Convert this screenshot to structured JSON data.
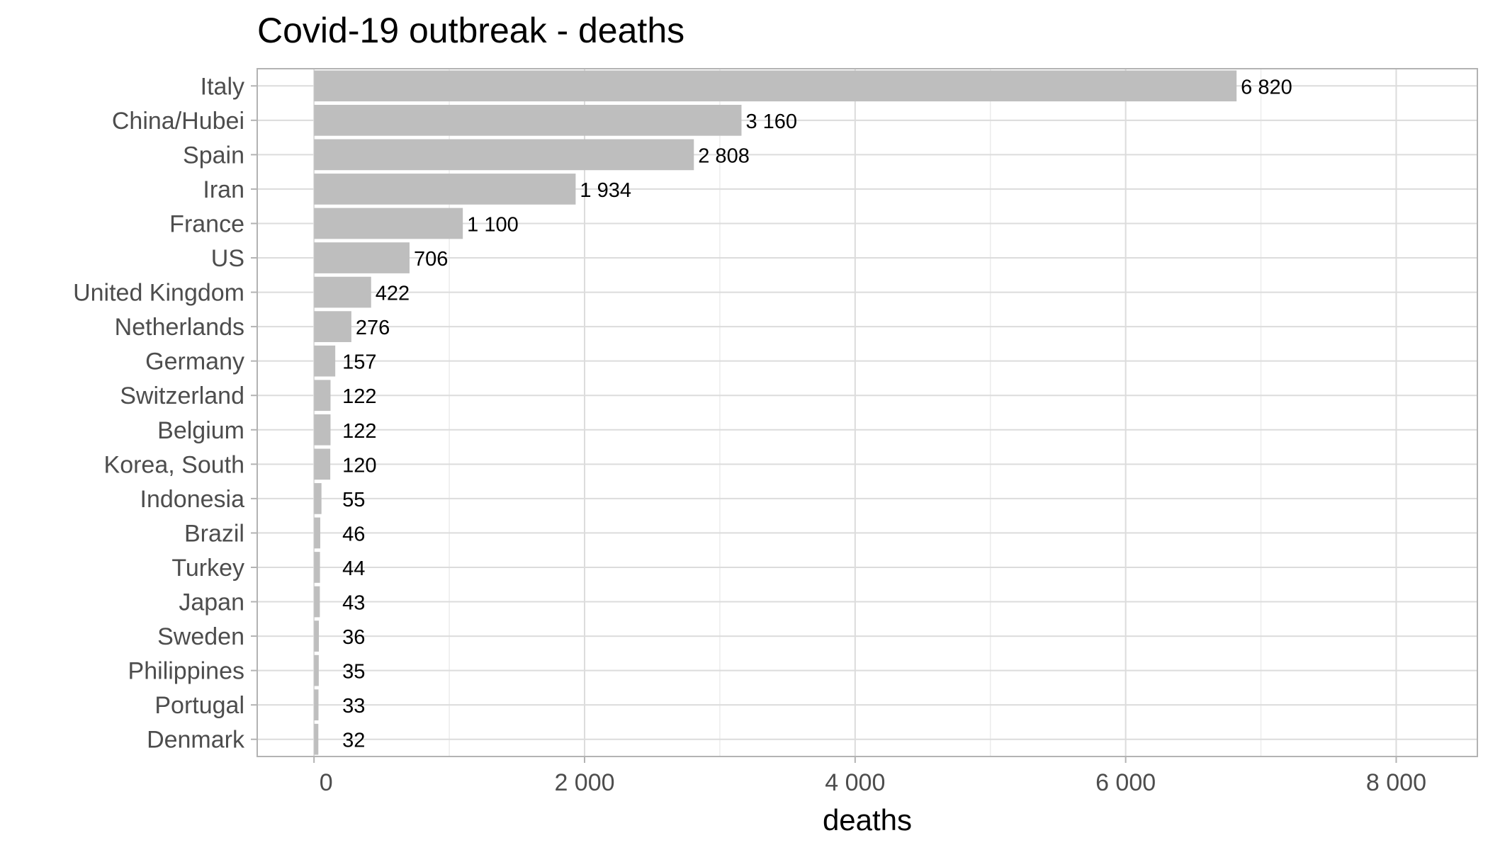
{
  "chart_data": {
    "type": "bar",
    "orientation": "horizontal",
    "title": "Covid-19 outbreak - deaths",
    "xlabel": "deaths",
    "ylabel": "",
    "categories": [
      "Italy",
      "China/Hubei",
      "Spain",
      "Iran",
      "France",
      "US",
      "United Kingdom",
      "Netherlands",
      "Germany",
      "Switzerland",
      "Belgium",
      "Korea, South",
      "Indonesia",
      "Brazil",
      "Turkey",
      "Japan",
      "Sweden",
      "Philippines",
      "Portugal",
      "Denmark"
    ],
    "values": [
      6820,
      3160,
      2808,
      1934,
      1100,
      706,
      422,
      276,
      157,
      122,
      122,
      120,
      55,
      46,
      44,
      43,
      36,
      35,
      33,
      32
    ],
    "value_labels": [
      "6 820",
      "3 160",
      "2 808",
      "1 934",
      "1 100",
      "706",
      "422",
      "276",
      "157",
      "122",
      "122",
      "120",
      "55",
      "46",
      "44",
      "43",
      "36",
      "35",
      "33",
      "32"
    ],
    "xlim": [
      -420,
      8600
    ],
    "x_ticks": [
      0,
      2000,
      4000,
      6000,
      8000
    ],
    "x_tick_labels": [
      "0",
      "2 000",
      "4 000",
      "6 000",
      "8 000"
    ],
    "x_minor_ticks": [
      1000,
      3000,
      5000,
      7000
    ],
    "grid": true,
    "legend": "none",
    "colors": {
      "bar": "#bebebe",
      "panel_border": "#b3b3b3",
      "grid_major": "#dcdcdc",
      "grid_minor": "#ececec",
      "tick_text": "#4d4d4d",
      "text": "#000000"
    }
  }
}
